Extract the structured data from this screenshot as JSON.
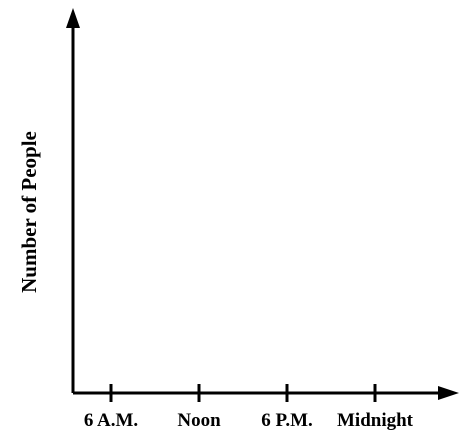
{
  "chart_data": {
    "type": "line",
    "title": "",
    "xlabel": "",
    "ylabel": "Number of People",
    "categories": [
      "6 A.M.",
      "Noon",
      "6 P.M.",
      "Midnight"
    ],
    "series": [],
    "grid": false
  }
}
